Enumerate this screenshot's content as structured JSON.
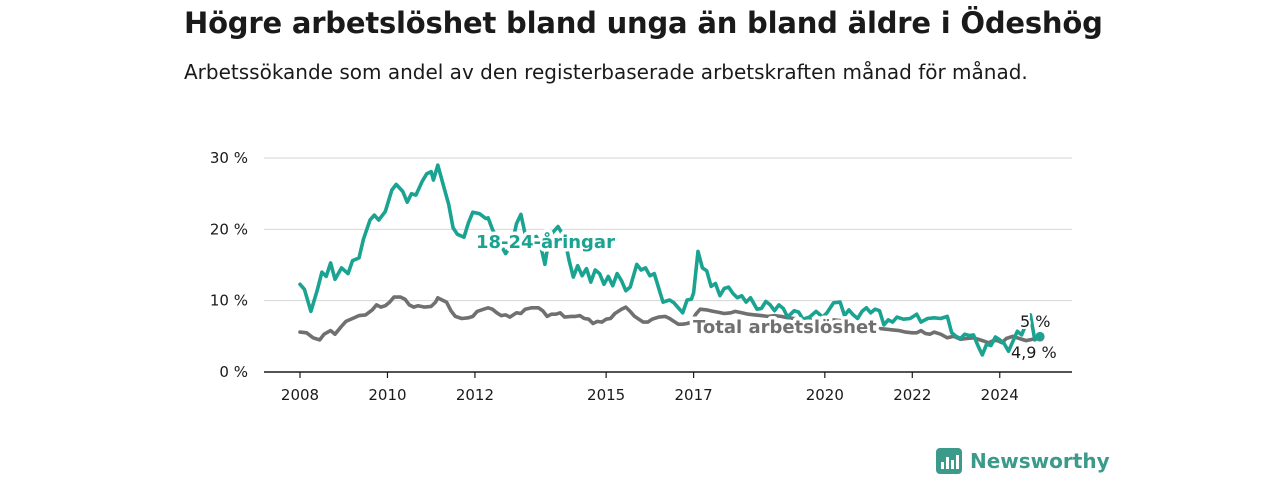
{
  "header": {
    "title": "Högre arbetslöshet bland unga än bland äldre i Ödeshög",
    "subtitle": "Arbetssökande som andel av den registerbaserade arbetskraften månad för månad."
  },
  "brand": {
    "name": "Newsworthy",
    "color": "#3b9a8a"
  },
  "chart_data": {
    "type": "line",
    "title": "Högre arbetslöshet bland unga än bland äldre i Ödeshög",
    "subtitle": "Arbetssökande som andel av den registerbaserade arbetskraften månad för månad.",
    "xlabel": "",
    "ylabel": "",
    "xlim": [
      2008.0,
      2024.92
    ],
    "ylim": [
      0,
      30
    ],
    "grid": "horizontal",
    "x_ticks": [
      {
        "value": 2008,
        "label": "2008"
      },
      {
        "value": 2010,
        "label": "2010"
      },
      {
        "value": 2012,
        "label": "2012"
      },
      {
        "value": 2015,
        "label": "2015"
      },
      {
        "value": 2017,
        "label": "2017"
      },
      {
        "value": 2020,
        "label": "2020"
      },
      {
        "value": 2022,
        "label": "2022"
      },
      {
        "value": 2024,
        "label": "2024"
      }
    ],
    "y_ticks": [
      {
        "value": 0,
        "label": "0 %"
      },
      {
        "value": 10,
        "label": "10 %"
      },
      {
        "value": 20,
        "label": "20 %"
      },
      {
        "value": 30,
        "label": "30 %"
      }
    ],
    "series": [
      {
        "name": "18-24-åringar",
        "color": "#1aa391",
        "end_label": "5 %",
        "points": [
          [
            2008.0,
            12.3
          ],
          [
            2008.1,
            11.6
          ],
          [
            2008.25,
            8.5
          ],
          [
            2008.4,
            11.6
          ],
          [
            2008.5,
            14.0
          ],
          [
            2008.6,
            13.4
          ],
          [
            2008.7,
            15.3
          ],
          [
            2008.8,
            13.0
          ],
          [
            2008.95,
            14.6
          ],
          [
            2009.1,
            13.8
          ],
          [
            2009.2,
            15.6
          ],
          [
            2009.35,
            16.0
          ],
          [
            2009.45,
            18.6
          ],
          [
            2009.6,
            21.3
          ],
          [
            2009.7,
            22.0
          ],
          [
            2009.8,
            21.3
          ],
          [
            2009.95,
            22.5
          ],
          [
            2010.1,
            25.5
          ],
          [
            2010.2,
            26.3
          ],
          [
            2010.35,
            25.3
          ],
          [
            2010.45,
            23.8
          ],
          [
            2010.55,
            25.0
          ],
          [
            2010.65,
            24.8
          ],
          [
            2010.8,
            26.8
          ],
          [
            2010.9,
            27.8
          ],
          [
            2011.0,
            28.1
          ],
          [
            2011.05,
            26.9
          ],
          [
            2011.15,
            29.0
          ],
          [
            2011.3,
            25.7
          ],
          [
            2011.4,
            23.5
          ],
          [
            2011.5,
            20.2
          ],
          [
            2011.6,
            19.3
          ],
          [
            2011.75,
            18.9
          ],
          [
            2011.85,
            20.9
          ],
          [
            2011.95,
            22.4
          ],
          [
            2012.1,
            22.2
          ],
          [
            2012.25,
            21.5
          ],
          [
            2012.3,
            21.6
          ],
          [
            2012.4,
            20.0
          ],
          [
            2012.7,
            16.6
          ],
          [
            2012.85,
            18.0
          ],
          [
            2012.95,
            20.8
          ],
          [
            2013.05,
            22.1
          ],
          [
            2013.15,
            19.3
          ],
          [
            2013.25,
            18.5
          ],
          [
            2013.4,
            19.0
          ],
          [
            2013.5,
            17.8
          ],
          [
            2013.6,
            15.1
          ],
          [
            2013.7,
            19.0
          ],
          [
            2013.9,
            20.4
          ],
          [
            2014.05,
            18.8
          ],
          [
            2014.15,
            15.7
          ],
          [
            2014.25,
            13.3
          ],
          [
            2014.35,
            14.9
          ],
          [
            2014.45,
            13.5
          ],
          [
            2014.55,
            14.5
          ],
          [
            2014.65,
            12.6
          ],
          [
            2014.75,
            14.3
          ],
          [
            2014.85,
            13.8
          ],
          [
            2014.95,
            12.3
          ],
          [
            2015.05,
            13.4
          ],
          [
            2015.15,
            12.1
          ],
          [
            2015.25,
            13.8
          ],
          [
            2015.35,
            12.8
          ],
          [
            2015.45,
            11.4
          ],
          [
            2015.55,
            11.9
          ],
          [
            2015.7,
            15.1
          ],
          [
            2015.8,
            14.3
          ],
          [
            2015.9,
            14.6
          ],
          [
            2016.0,
            13.5
          ],
          [
            2016.1,
            13.8
          ],
          [
            2016.2,
            11.8
          ],
          [
            2016.3,
            9.8
          ],
          [
            2016.45,
            10.1
          ],
          [
            2016.55,
            9.7
          ],
          [
            2016.65,
            9.0
          ],
          [
            2016.75,
            8.3
          ],
          [
            2016.85,
            10.1
          ],
          [
            2016.95,
            10.2
          ],
          [
            2017.0,
            11.1
          ],
          [
            2017.05,
            14.0
          ],
          [
            2017.1,
            16.9
          ],
          [
            2017.2,
            14.6
          ],
          [
            2017.3,
            14.2
          ],
          [
            2017.4,
            12.0
          ],
          [
            2017.5,
            12.4
          ],
          [
            2017.6,
            10.7
          ],
          [
            2017.7,
            11.7
          ],
          [
            2017.8,
            11.9
          ],
          [
            2017.9,
            11.0
          ],
          [
            2018.0,
            10.4
          ],
          [
            2018.1,
            10.7
          ],
          [
            2018.2,
            9.8
          ],
          [
            2018.3,
            10.4
          ],
          [
            2018.45,
            8.8
          ],
          [
            2018.55,
            8.9
          ],
          [
            2018.65,
            9.9
          ],
          [
            2018.75,
            9.4
          ],
          [
            2018.85,
            8.6
          ],
          [
            2018.95,
            9.4
          ],
          [
            2019.05,
            8.9
          ],
          [
            2019.15,
            7.7
          ],
          [
            2019.3,
            8.6
          ],
          [
            2019.4,
            8.4
          ],
          [
            2019.5,
            7.4
          ],
          [
            2019.65,
            7.7
          ],
          [
            2019.8,
            8.5
          ],
          [
            2019.95,
            7.7
          ],
          [
            2020.05,
            8.3
          ],
          [
            2020.2,
            9.7
          ],
          [
            2020.35,
            9.8
          ],
          [
            2020.45,
            7.9
          ],
          [
            2020.55,
            8.7
          ],
          [
            2020.65,
            8.0
          ],
          [
            2020.75,
            7.5
          ],
          [
            2020.85,
            8.5
          ],
          [
            2020.95,
            9.0
          ],
          [
            2021.05,
            8.3
          ],
          [
            2021.15,
            8.8
          ],
          [
            2021.25,
            8.6
          ],
          [
            2021.35,
            6.6
          ],
          [
            2021.45,
            7.3
          ],
          [
            2021.55,
            7.0
          ],
          [
            2021.65,
            7.7
          ],
          [
            2021.8,
            7.4
          ],
          [
            2021.95,
            7.5
          ],
          [
            2022.1,
            8.1
          ],
          [
            2022.2,
            7.0
          ],
          [
            2022.35,
            7.5
          ],
          [
            2022.5,
            7.6
          ],
          [
            2022.65,
            7.5
          ],
          [
            2022.8,
            7.8
          ],
          [
            2022.9,
            5.5
          ],
          [
            2023.0,
            5.0
          ],
          [
            2023.1,
            4.7
          ],
          [
            2023.2,
            5.3
          ],
          [
            2023.3,
            5.1
          ],
          [
            2023.4,
            5.2
          ],
          [
            2023.5,
            3.7
          ],
          [
            2023.6,
            2.4
          ],
          [
            2023.7,
            3.9
          ],
          [
            2023.8,
            3.7
          ],
          [
            2023.9,
            4.9
          ],
          [
            2024.0,
            4.5
          ],
          [
            2024.1,
            4.0
          ],
          [
            2024.2,
            2.9
          ],
          [
            2024.3,
            4.3
          ],
          [
            2024.4,
            5.7
          ],
          [
            2024.5,
            5.2
          ],
          [
            2024.6,
            6.7
          ],
          [
            2024.7,
            8.0
          ],
          [
            2024.8,
            4.5
          ],
          [
            2024.92,
            5.0
          ]
        ]
      },
      {
        "name": "Total arbetslöshet",
        "color": "#707070",
        "end_label": "4,9 %",
        "points": [
          [
            2008.0,
            5.6
          ],
          [
            2008.15,
            5.5
          ],
          [
            2008.3,
            4.8
          ],
          [
            2008.45,
            4.5
          ],
          [
            2008.55,
            5.3
          ],
          [
            2008.7,
            5.8
          ],
          [
            2008.8,
            5.3
          ],
          [
            2008.95,
            6.4
          ],
          [
            2009.05,
            7.1
          ],
          [
            2009.2,
            7.5
          ],
          [
            2009.35,
            7.9
          ],
          [
            2009.5,
            8.0
          ],
          [
            2009.65,
            8.7
          ],
          [
            2009.75,
            9.4
          ],
          [
            2009.85,
            9.1
          ],
          [
            2009.95,
            9.3
          ],
          [
            2010.05,
            9.8
          ],
          [
            2010.15,
            10.5
          ],
          [
            2010.3,
            10.5
          ],
          [
            2010.4,
            10.2
          ],
          [
            2010.5,
            9.4
          ],
          [
            2010.6,
            9.1
          ],
          [
            2010.7,
            9.3
          ],
          [
            2010.85,
            9.1
          ],
          [
            2011.0,
            9.2
          ],
          [
            2011.1,
            9.8
          ],
          [
            2011.15,
            10.4
          ],
          [
            2011.25,
            10.1
          ],
          [
            2011.35,
            9.8
          ],
          [
            2011.45,
            8.6
          ],
          [
            2011.55,
            7.8
          ],
          [
            2011.7,
            7.5
          ],
          [
            2011.85,
            7.6
          ],
          [
            2011.95,
            7.8
          ],
          [
            2012.05,
            8.5
          ],
          [
            2012.2,
            8.8
          ],
          [
            2012.3,
            9.0
          ],
          [
            2012.4,
            8.8
          ],
          [
            2012.5,
            8.3
          ],
          [
            2012.6,
            7.9
          ],
          [
            2012.7,
            8.0
          ],
          [
            2012.8,
            7.7
          ],
          [
            2012.95,
            8.3
          ],
          [
            2013.05,
            8.2
          ],
          [
            2013.15,
            8.8
          ],
          [
            2013.3,
            9.0
          ],
          [
            2013.45,
            9.0
          ],
          [
            2013.55,
            8.6
          ],
          [
            2013.65,
            7.8
          ],
          [
            2013.75,
            8.1
          ],
          [
            2013.85,
            8.1
          ],
          [
            2013.95,
            8.3
          ],
          [
            2014.05,
            7.7
          ],
          [
            2014.2,
            7.8
          ],
          [
            2014.3,
            7.8
          ],
          [
            2014.4,
            7.9
          ],
          [
            2014.5,
            7.5
          ],
          [
            2014.6,
            7.4
          ],
          [
            2014.7,
            6.8
          ],
          [
            2014.8,
            7.1
          ],
          [
            2014.9,
            7.0
          ],
          [
            2015.0,
            7.4
          ],
          [
            2015.1,
            7.5
          ],
          [
            2015.2,
            8.2
          ],
          [
            2015.35,
            8.8
          ],
          [
            2015.45,
            9.1
          ],
          [
            2015.55,
            8.5
          ],
          [
            2015.65,
            7.8
          ],
          [
            2015.75,
            7.4
          ],
          [
            2015.85,
            7.0
          ],
          [
            2015.95,
            7.0
          ],
          [
            2016.05,
            7.4
          ],
          [
            2016.2,
            7.7
          ],
          [
            2016.35,
            7.8
          ],
          [
            2016.45,
            7.5
          ],
          [
            2016.55,
            7.1
          ],
          [
            2016.65,
            6.7
          ],
          [
            2016.75,
            6.7
          ],
          [
            2016.85,
            6.8
          ],
          [
            2016.95,
            7.0
          ],
          [
            2017.05,
            8.1
          ],
          [
            2017.15,
            8.8
          ],
          [
            2017.3,
            8.7
          ],
          [
            2017.45,
            8.5
          ],
          [
            2017.55,
            8.4
          ],
          [
            2017.7,
            8.2
          ],
          [
            2017.85,
            8.3
          ],
          [
            2017.95,
            8.5
          ],
          [
            2018.1,
            8.3
          ],
          [
            2018.25,
            8.1
          ],
          [
            2018.4,
            8.0
          ],
          [
            2018.55,
            7.9
          ],
          [
            2018.7,
            7.8
          ],
          [
            2018.85,
            7.9
          ],
          [
            2019.0,
            7.8
          ],
          [
            2019.15,
            7.6
          ],
          [
            2019.3,
            7.5
          ],
          [
            2019.45,
            7.4
          ],
          [
            2019.6,
            7.3
          ],
          [
            2019.75,
            7.3
          ],
          [
            2019.9,
            7.2
          ],
          [
            2020.05,
            7.2
          ],
          [
            2020.2,
            7.3
          ],
          [
            2020.35,
            7.2
          ],
          [
            2020.5,
            7.0
          ],
          [
            2020.65,
            6.8
          ],
          [
            2020.8,
            6.7
          ],
          [
            2020.95,
            6.5
          ],
          [
            2021.1,
            6.3
          ],
          [
            2021.25,
            6.1
          ],
          [
            2021.4,
            6.0
          ],
          [
            2021.55,
            5.9
          ],
          [
            2021.7,
            5.8
          ],
          [
            2021.85,
            5.6
          ],
          [
            2022.0,
            5.5
          ],
          [
            2022.1,
            5.5
          ],
          [
            2022.2,
            5.8
          ],
          [
            2022.3,
            5.4
          ],
          [
            2022.4,
            5.3
          ],
          [
            2022.5,
            5.6
          ],
          [
            2022.65,
            5.3
          ],
          [
            2022.8,
            4.8
          ],
          [
            2022.95,
            5.0
          ],
          [
            2023.1,
            4.6
          ],
          [
            2023.25,
            4.7
          ],
          [
            2023.4,
            4.8
          ],
          [
            2023.55,
            4.5
          ],
          [
            2023.65,
            4.3
          ],
          [
            2023.75,
            4.1
          ],
          [
            2023.85,
            4.4
          ],
          [
            2023.95,
            4.4
          ],
          [
            2024.05,
            4.1
          ],
          [
            2024.15,
            4.7
          ],
          [
            2024.3,
            5.0
          ],
          [
            2024.45,
            4.7
          ],
          [
            2024.6,
            4.4
          ],
          [
            2024.75,
            4.6
          ],
          [
            2024.92,
            4.9
          ]
        ]
      }
    ]
  }
}
